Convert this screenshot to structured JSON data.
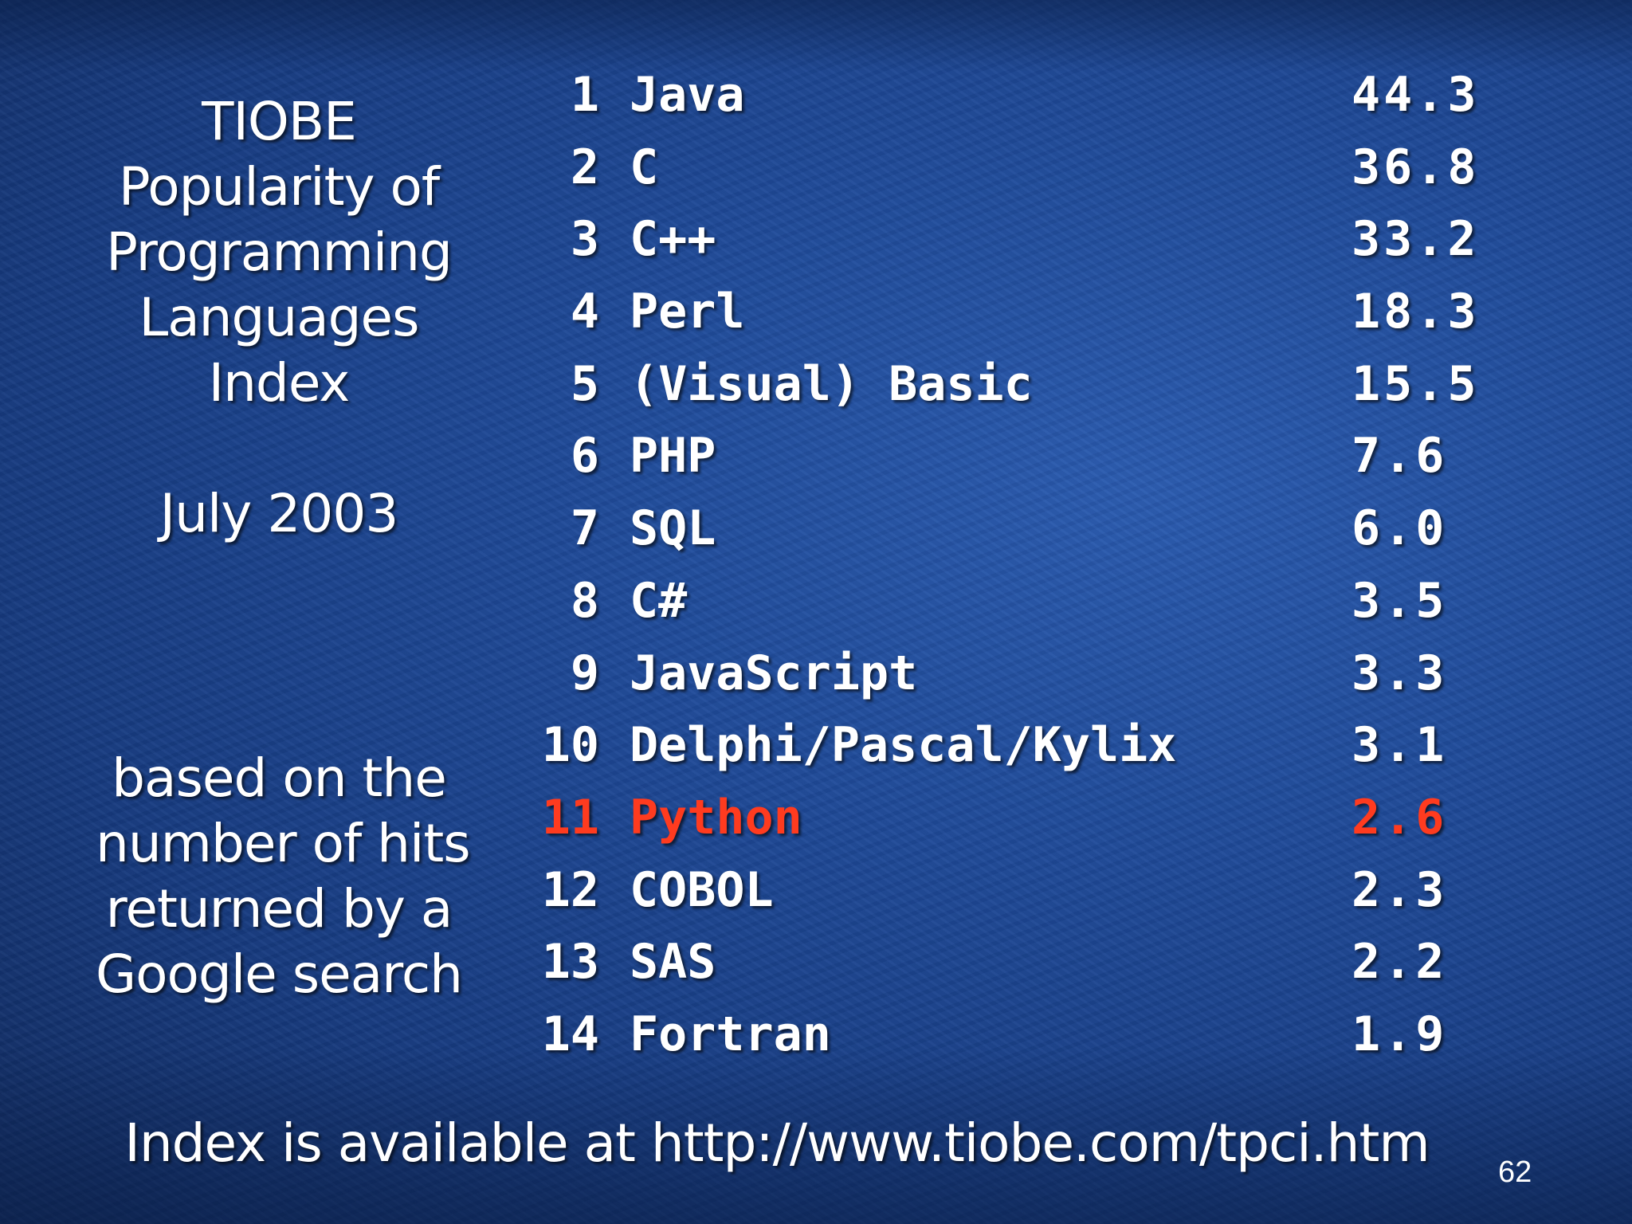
{
  "title_lines": [
    "TIOBE",
    "Popularity of",
    "Programming",
    "Languages",
    "Index"
  ],
  "date": "July 2003",
  "basis_lines": [
    "based on the",
    "number of hits",
    "returned by a",
    "Google search"
  ],
  "highlight_color": "#ff3b1f",
  "background_color": "#1f4a99",
  "rankings": [
    {
      "rank": "1",
      "language": "Java",
      "score": "44.3"
    },
    {
      "rank": "2",
      "language": "C",
      "score": "36.8"
    },
    {
      "rank": "3",
      "language": "C++",
      "score": "33.2"
    },
    {
      "rank": "4",
      "language": "Perl",
      "score": "18.3"
    },
    {
      "rank": "5",
      "language": "(Visual) Basic",
      "score": "15.5"
    },
    {
      "rank": "6",
      "language": "PHP",
      "score": "7.6"
    },
    {
      "rank": "7",
      "language": "SQL",
      "score": "6.0"
    },
    {
      "rank": "8",
      "language": "C#",
      "score": "3.5"
    },
    {
      "rank": "9",
      "language": "JavaScript",
      "score": "3.3"
    },
    {
      "rank": "10",
      "language": "Delphi/Pascal/Kylix",
      "score": "3.1"
    },
    {
      "rank": "11",
      "language": "Python",
      "score": "2.6",
      "highlighted": true
    },
    {
      "rank": "12",
      "language": "COBOL",
      "score": "2.3"
    },
    {
      "rank": "13",
      "language": "SAS",
      "score": "2.2"
    },
    {
      "rank": "14",
      "language": "Fortran",
      "score": "1.9"
    }
  ],
  "footer": "Index is available at http://www.tiobe.com/tpci.htm",
  "page_number": "62"
}
